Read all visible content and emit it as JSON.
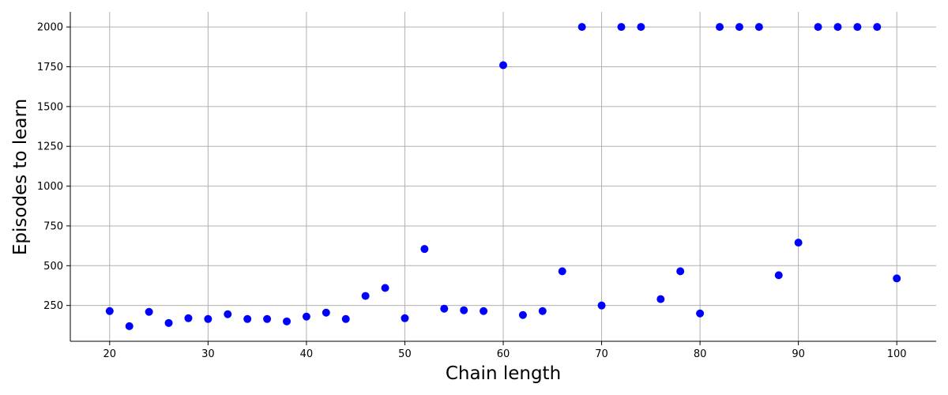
{
  "chart_data": {
    "type": "scatter",
    "title": "",
    "xlabel": "Chain length",
    "ylabel": "Episodes to learn",
    "xlim": [
      16,
      104
    ],
    "ylim": [
      25,
      2095
    ],
    "x_ticks": [
      20,
      30,
      40,
      50,
      60,
      70,
      80,
      90,
      100
    ],
    "y_ticks": [
      250,
      500,
      750,
      1000,
      1250,
      1500,
      1750,
      2000
    ],
    "grid": true,
    "point_color": "#0000ff",
    "series": [
      {
        "x": [
          20,
          22,
          24,
          26,
          28,
          30,
          32,
          34,
          36,
          38,
          40,
          42,
          44,
          46,
          48,
          50,
          52,
          54,
          56,
          58,
          60,
          62,
          64,
          66,
          68,
          70,
          72,
          74,
          76,
          78,
          80,
          82,
          84,
          86,
          88,
          90,
          92,
          94,
          96,
          98,
          100
        ],
        "y": [
          215,
          120,
          210,
          140,
          170,
          165,
          195,
          165,
          165,
          150,
          180,
          205,
          165,
          310,
          360,
          170,
          605,
          230,
          220,
          215,
          1760,
          190,
          215,
          465,
          2000,
          250,
          2000,
          2000,
          290,
          465,
          200,
          2000,
          2000,
          2000,
          440,
          645,
          2000,
          2000,
          2000,
          2000,
          420
        ]
      }
    ]
  }
}
